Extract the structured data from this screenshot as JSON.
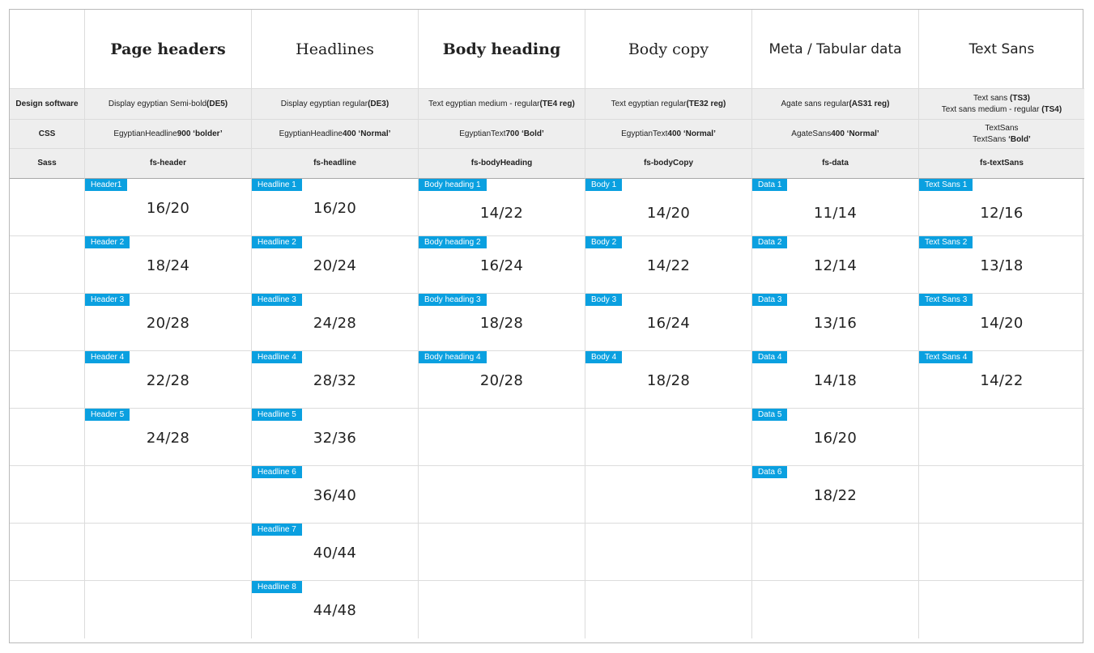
{
  "columns": [
    {
      "title": "Page headers",
      "design": "Display egyptian Semi-bold ",
      "design_code": "(DE5)",
      "css": "EgyptianHeadline ",
      "css_weight": "900 ‘bolder’",
      "sass": "fs-header"
    },
    {
      "title": "Headlines",
      "design": "Display egyptian regular ",
      "design_code": "(DE3)",
      "css": "EgyptianHeadline ",
      "css_weight": "400 ‘Normal’",
      "sass": "fs-headline"
    },
    {
      "title": "Body heading",
      "design": "Text egyptian medium - regular ",
      "design_code": "(TE4 reg)",
      "css": "EgyptianText ",
      "css_weight": "700 ‘Bold’",
      "sass": "fs-bodyHeading"
    },
    {
      "title": "Body copy",
      "design": "Text egyptian regular ",
      "design_code": "(TE32 reg)",
      "css": "EgyptianText ",
      "css_weight": "400 ‘Normal’",
      "sass": "fs-bodyCopy"
    },
    {
      "title": "Meta / Tabular data",
      "design": "Agate sans regular ",
      "design_code": "(AS31 reg)",
      "css": "AgateSans ",
      "css_weight": "400 ‘Normal’",
      "sass": "fs-data"
    },
    {
      "title": "Text Sans",
      "design_line1": "Text sans ",
      "design_code1": "(TS3)",
      "design_line2": "Text sans medium - regular ",
      "design_code2": "(TS4)",
      "css_line1": "TextSans",
      "css_line2": "TextSans ",
      "css_line2_weight": " ‘Bold’",
      "sass": "fs-textSans"
    }
  ],
  "row_labels": {
    "design": "Design software",
    "css": "CSS",
    "sass": "Sass"
  },
  "sizes": {
    "header": [
      {
        "label": "Header1",
        "value": "16/20"
      },
      {
        "label": "Header 2",
        "value": "18/24"
      },
      {
        "label": "Header 3",
        "value": "20/28"
      },
      {
        "label": "Header 4",
        "value": "22/28"
      },
      {
        "label": "Header 5",
        "value": "24/28"
      }
    ],
    "headline": [
      {
        "label": "Headline 1",
        "value": "16/20"
      },
      {
        "label": "Headline 2",
        "value": "20/24"
      },
      {
        "label": "Headline 3",
        "value": "24/28"
      },
      {
        "label": "Headline 4",
        "value": "28/32"
      },
      {
        "label": "Headline 5",
        "value": "32/36"
      },
      {
        "label": "Headline 6",
        "value": "36/40"
      },
      {
        "label": "Headline 7",
        "value": "40/44"
      },
      {
        "label": "Headline 8",
        "value": "44/48"
      }
    ],
    "bodyHeading": [
      {
        "label": "Body heading 1",
        "value": "14/22"
      },
      {
        "label": "Body heading 2",
        "value": "16/24"
      },
      {
        "label": "Body heading 3",
        "value": "18/28"
      },
      {
        "label": "Body heading 4",
        "value": "20/28"
      }
    ],
    "bodyCopy": [
      {
        "label": "Body 1",
        "value": "14/20"
      },
      {
        "label": "Body 2",
        "value": "14/22"
      },
      {
        "label": "Body 3",
        "value": "16/24"
      },
      {
        "label": "Body 4",
        "value": "18/28"
      }
    ],
    "data": [
      {
        "label": "Data 1",
        "value": "11/14"
      },
      {
        "label": "Data 2",
        "value": "12/14"
      },
      {
        "label": "Data 3",
        "value": "13/16"
      },
      {
        "label": "Data 4",
        "value": "14/18"
      },
      {
        "label": "Data 5",
        "value": "16/20"
      },
      {
        "label": "Data 6",
        "value": "18/22"
      }
    ],
    "textSans": [
      {
        "label": "Text Sans 1",
        "value": "12/16"
      },
      {
        "label": "Text Sans 2",
        "value": "13/18"
      },
      {
        "label": "Text Sans 3",
        "value": "14/20"
      },
      {
        "label": "Text Sans 4",
        "value": "14/22"
      }
    ]
  },
  "colors": {
    "badge": "#0aa0e0",
    "meta_background": "#eeeeee"
  }
}
